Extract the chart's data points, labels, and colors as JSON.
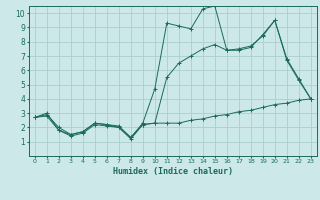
{
  "title": "",
  "xlabel": "Humidex (Indice chaleur)",
  "ylabel": "",
  "background_color": "#cce8e8",
  "grid_color": "#aacfcf",
  "line_color": "#1a6b5a",
  "xlim": [
    -0.5,
    23.5
  ],
  "ylim": [
    0,
    10.5
  ],
  "xticks": [
    0,
    1,
    2,
    3,
    4,
    5,
    6,
    7,
    8,
    9,
    10,
    11,
    12,
    13,
    14,
    15,
    16,
    17,
    18,
    19,
    20,
    21,
    22,
    23
  ],
  "yticks": [
    1,
    2,
    3,
    4,
    5,
    6,
    7,
    8,
    9,
    10
  ],
  "line1_x": [
    0,
    1,
    2,
    3,
    4,
    5,
    6,
    7,
    8,
    9,
    10,
    11,
    12,
    13,
    14,
    15,
    16,
    17,
    18,
    19,
    20,
    21,
    22,
    23
  ],
  "line1_y": [
    2.7,
    3.0,
    1.8,
    1.4,
    1.6,
    2.2,
    2.1,
    2.0,
    1.2,
    2.2,
    2.3,
    2.3,
    2.3,
    2.5,
    2.6,
    2.8,
    2.9,
    3.1,
    3.2,
    3.4,
    3.6,
    3.7,
    3.9,
    4.0
  ],
  "line2_x": [
    0,
    1,
    2,
    3,
    4,
    5,
    6,
    7,
    8,
    9,
    10,
    11,
    12,
    13,
    14,
    15,
    16,
    17,
    18,
    19,
    20,
    21,
    22,
    23
  ],
  "line2_y": [
    2.7,
    2.9,
    2.0,
    1.5,
    1.7,
    2.3,
    2.2,
    2.1,
    1.3,
    2.3,
    4.7,
    9.3,
    9.1,
    8.9,
    10.3,
    10.5,
    7.4,
    7.4,
    7.6,
    8.5,
    9.5,
    6.7,
    5.3,
    4.0
  ],
  "line3_x": [
    0,
    1,
    2,
    3,
    4,
    5,
    6,
    7,
    8,
    9,
    10,
    11,
    12,
    13,
    14,
    15,
    16,
    17,
    18,
    19,
    20,
    21,
    22,
    23
  ],
  "line3_y": [
    2.7,
    2.8,
    1.8,
    1.5,
    1.7,
    2.3,
    2.2,
    2.0,
    1.3,
    2.2,
    2.3,
    5.5,
    6.5,
    7.0,
    7.5,
    7.8,
    7.4,
    7.5,
    7.7,
    8.4,
    9.5,
    6.8,
    5.4,
    4.0
  ]
}
